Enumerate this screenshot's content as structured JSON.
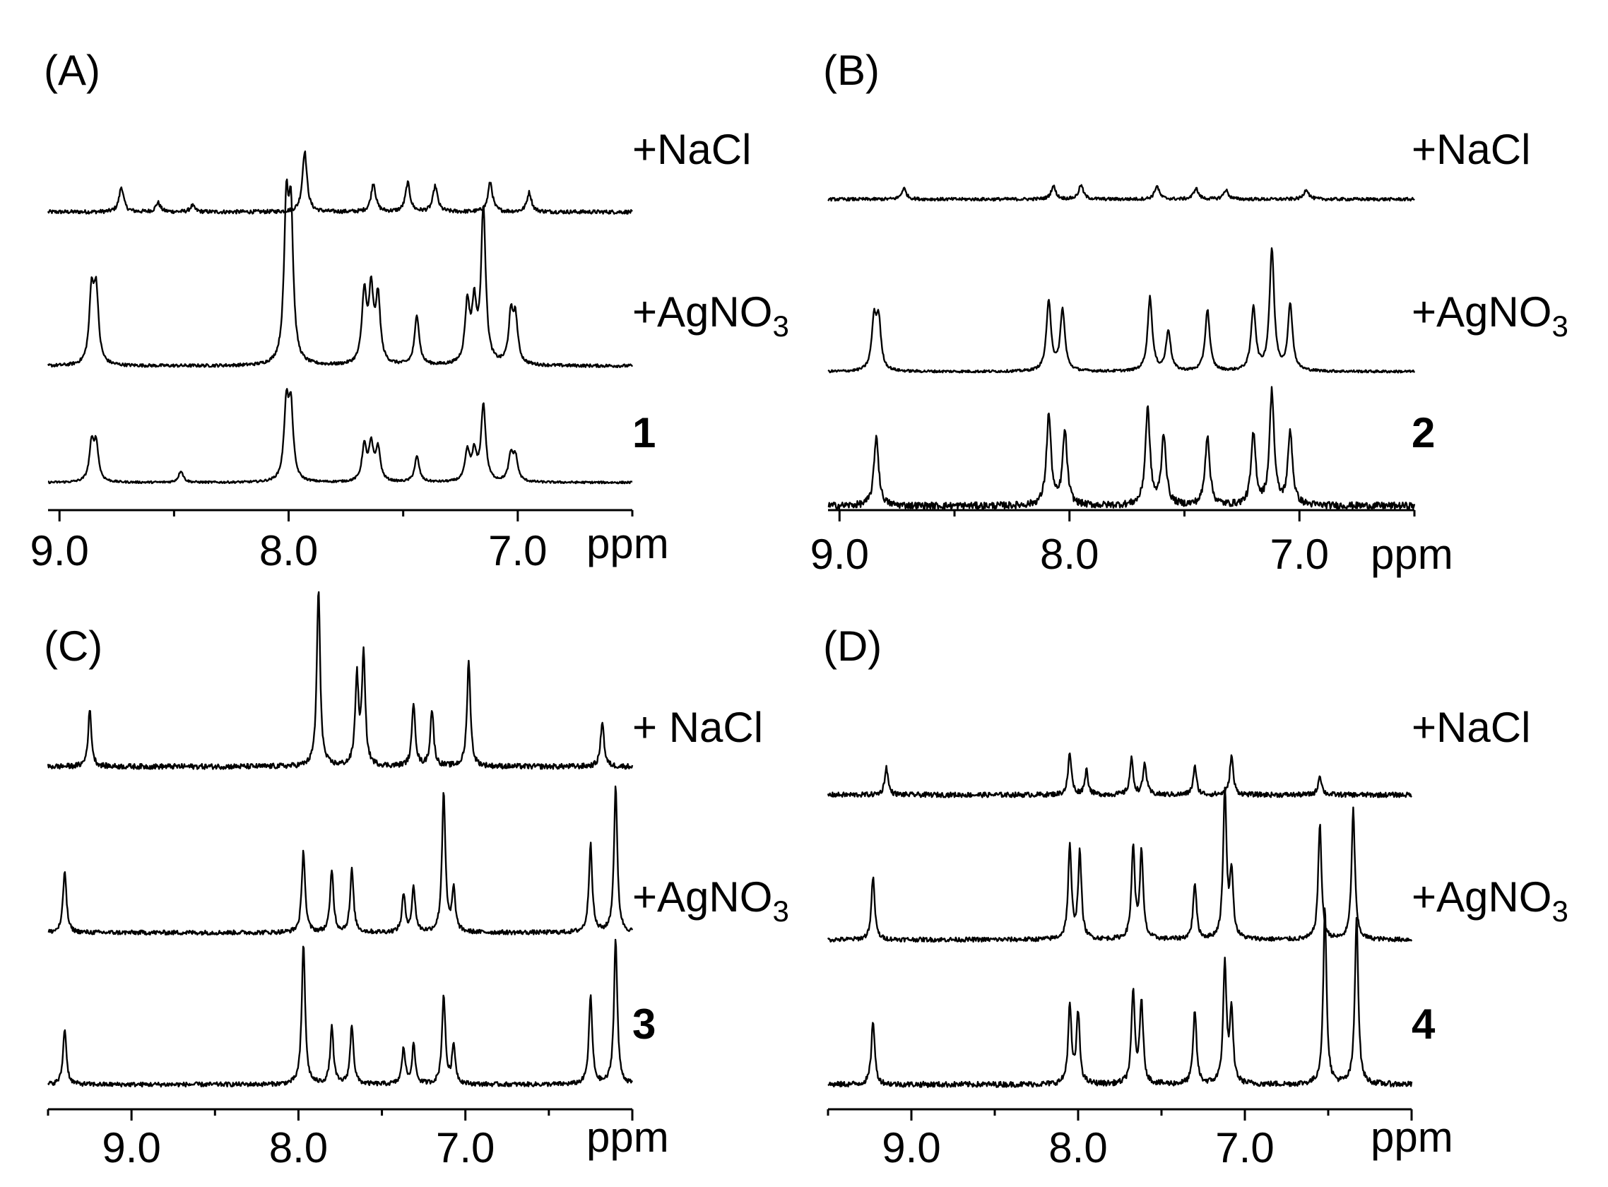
{
  "figure": {
    "panels": [
      {
        "id": "A",
        "label": "(A)",
        "traces": [
          "+NaCl",
          "+AgNO3",
          "1"
        ]
      },
      {
        "id": "B",
        "label": "(B)",
        "traces": [
          "+NaCl",
          "+AgNO3",
          "2"
        ]
      },
      {
        "id": "C",
        "label": "(C)",
        "traces": [
          "+ NaCl",
          "+AgNO3",
          "3"
        ]
      },
      {
        "id": "D",
        "label": "(D)",
        "traces": [
          "+NaCl",
          "+AgNO3",
          "4"
        ]
      }
    ]
  },
  "chart_data": [
    {
      "type": "line",
      "panel": "(A)",
      "xlabel": "ppm",
      "xlim": [
        9.05,
        6.5
      ],
      "x_reversed": true,
      "xticks": [
        "9.0",
        "8.0",
        "7.0"
      ],
      "series": [
        {
          "name": "+NaCl",
          "baseline_noise": 0.05,
          "peaks": [
            [
              8.73,
              0.32
            ],
            [
              8.57,
              0.12
            ],
            [
              8.42,
              0.08
            ],
            [
              7.93,
              0.78
            ],
            [
              7.63,
              0.37
            ],
            [
              7.48,
              0.37
            ],
            [
              7.36,
              0.33
            ],
            [
              7.12,
              0.38
            ],
            [
              6.95,
              0.25
            ]
          ]
        },
        {
          "name": "+AgNO3",
          "baseline_noise": 0.02,
          "peaks": [
            [
              8.86,
              0.45
            ],
            [
              8.84,
              0.45
            ],
            [
              8.01,
              0.95
            ],
            [
              7.99,
              0.9
            ],
            [
              7.67,
              0.45
            ],
            [
              7.64,
              0.45
            ],
            [
              7.61,
              0.42
            ],
            [
              7.44,
              0.32
            ],
            [
              7.22,
              0.38
            ],
            [
              7.19,
              0.36
            ],
            [
              7.15,
              1.0
            ],
            [
              7.03,
              0.3
            ],
            [
              7.01,
              0.28
            ]
          ]
        },
        {
          "name": "1",
          "baseline_noise": 0.02,
          "peaks": [
            [
              8.86,
              0.34
            ],
            [
              8.84,
              0.34
            ],
            [
              8.47,
              0.11
            ],
            [
              8.01,
              0.7
            ],
            [
              7.99,
              0.66
            ],
            [
              7.67,
              0.33
            ],
            [
              7.64,
              0.33
            ],
            [
              7.61,
              0.31
            ],
            [
              7.44,
              0.24
            ],
            [
              7.22,
              0.28
            ],
            [
              7.19,
              0.26
            ],
            [
              7.15,
              0.72
            ],
            [
              7.03,
              0.24
            ],
            [
              7.01,
              0.22
            ]
          ]
        }
      ]
    },
    {
      "type": "line",
      "panel": "(B)",
      "xlabel": "ppm",
      "xlim": [
        9.05,
        6.5
      ],
      "x_reversed": true,
      "xticks": [
        "9.0",
        "8.0",
        "7.0"
      ],
      "series": [
        {
          "name": "+NaCl",
          "baseline_noise": 0.04,
          "peaks": [
            [
              8.72,
              0.14
            ],
            [
              8.07,
              0.17
            ],
            [
              7.95,
              0.18
            ],
            [
              7.62,
              0.17
            ],
            [
              7.45,
              0.14
            ],
            [
              7.32,
              0.12
            ],
            [
              6.97,
              0.13
            ]
          ]
        },
        {
          "name": "+AgNO3",
          "baseline_noise": 0.02,
          "peaks": [
            [
              8.85,
              0.38
            ],
            [
              8.83,
              0.38
            ],
            [
              8.09,
              0.55
            ],
            [
              8.03,
              0.48
            ],
            [
              7.65,
              0.58
            ],
            [
              7.57,
              0.32
            ],
            [
              7.4,
              0.48
            ],
            [
              7.2,
              0.5
            ],
            [
              7.12,
              0.95
            ],
            [
              7.04,
              0.52
            ]
          ]
        },
        {
          "name": "2",
          "baseline_noise": 0.06,
          "peaks": [
            [
              8.84,
              0.62
            ],
            [
              8.09,
              0.8
            ],
            [
              8.02,
              0.65
            ],
            [
              7.66,
              0.85
            ],
            [
              7.59,
              0.62
            ],
            [
              7.4,
              0.62
            ],
            [
              7.2,
              0.62
            ],
            [
              7.12,
              1.0
            ],
            [
              7.04,
              0.65
            ]
          ]
        }
      ]
    },
    {
      "type": "line",
      "panel": "(C)",
      "xlabel": "ppm",
      "xlim": [
        9.5,
        6.0
      ],
      "x_reversed": true,
      "xticks": [
        "9.0",
        "8.0",
        "7.0"
      ],
      "series": [
        {
          "name": "+ NaCl",
          "baseline_noise": 0.03,
          "peaks": [
            [
              9.25,
              0.32
            ],
            [
              7.88,
              1.0
            ],
            [
              7.65,
              0.5
            ],
            [
              7.61,
              0.62
            ],
            [
              7.31,
              0.36
            ],
            [
              7.2,
              0.32
            ],
            [
              6.98,
              0.6
            ],
            [
              6.18,
              0.26
            ]
          ]
        },
        {
          "name": "+AgNO3",
          "baseline_noise": 0.03,
          "peaks": [
            [
              9.4,
              0.42
            ],
            [
              7.97,
              0.55
            ],
            [
              7.8,
              0.42
            ],
            [
              7.68,
              0.42
            ],
            [
              7.37,
              0.25
            ],
            [
              7.31,
              0.3
            ],
            [
              7.13,
              0.95
            ],
            [
              7.07,
              0.28
            ],
            [
              6.25,
              0.6
            ],
            [
              6.1,
              0.98
            ]
          ]
        },
        {
          "name": "3",
          "baseline_noise": 0.03,
          "peaks": [
            [
              9.4,
              0.38
            ],
            [
              7.97,
              0.95
            ],
            [
              7.8,
              0.38
            ],
            [
              7.68,
              0.4
            ],
            [
              7.37,
              0.24
            ],
            [
              7.31,
              0.26
            ],
            [
              7.13,
              0.6
            ],
            [
              7.07,
              0.26
            ],
            [
              6.25,
              0.6
            ],
            [
              6.1,
              0.98
            ]
          ]
        }
      ]
    },
    {
      "type": "line",
      "panel": "(D)",
      "xlabel": "ppm",
      "xlim": [
        9.5,
        6.0
      ],
      "x_reversed": true,
      "xticks": [
        "9.0",
        "8.0",
        "7.0"
      ],
      "series": [
        {
          "name": "+NaCl",
          "baseline_noise": 0.05,
          "peaks": [
            [
              9.15,
              0.28
            ],
            [
              8.05,
              0.42
            ],
            [
              7.95,
              0.25
            ],
            [
              7.68,
              0.36
            ],
            [
              7.6,
              0.32
            ],
            [
              7.3,
              0.28
            ],
            [
              7.08,
              0.4
            ],
            [
              6.55,
              0.2
            ]
          ]
        },
        {
          "name": "+AgNO3",
          "baseline_noise": 0.03,
          "peaks": [
            [
              9.23,
              0.42
            ],
            [
              8.05,
              0.62
            ],
            [
              7.99,
              0.58
            ],
            [
              7.67,
              0.62
            ],
            [
              7.62,
              0.58
            ],
            [
              7.3,
              0.38
            ],
            [
              7.12,
              1.0
            ],
            [
              7.08,
              0.44
            ],
            [
              6.55,
              0.78
            ],
            [
              6.35,
              0.88
            ]
          ]
        },
        {
          "name": "4",
          "baseline_noise": 0.03,
          "peaks": [
            [
              9.23,
              0.35
            ],
            [
              8.05,
              0.42
            ],
            [
              8.0,
              0.38
            ],
            [
              7.67,
              0.5
            ],
            [
              7.62,
              0.45
            ],
            [
              7.3,
              0.4
            ],
            [
              7.12,
              0.65
            ],
            [
              7.08,
              0.38
            ],
            [
              6.52,
              0.95
            ],
            [
              6.33,
              0.92
            ]
          ]
        }
      ]
    }
  ]
}
